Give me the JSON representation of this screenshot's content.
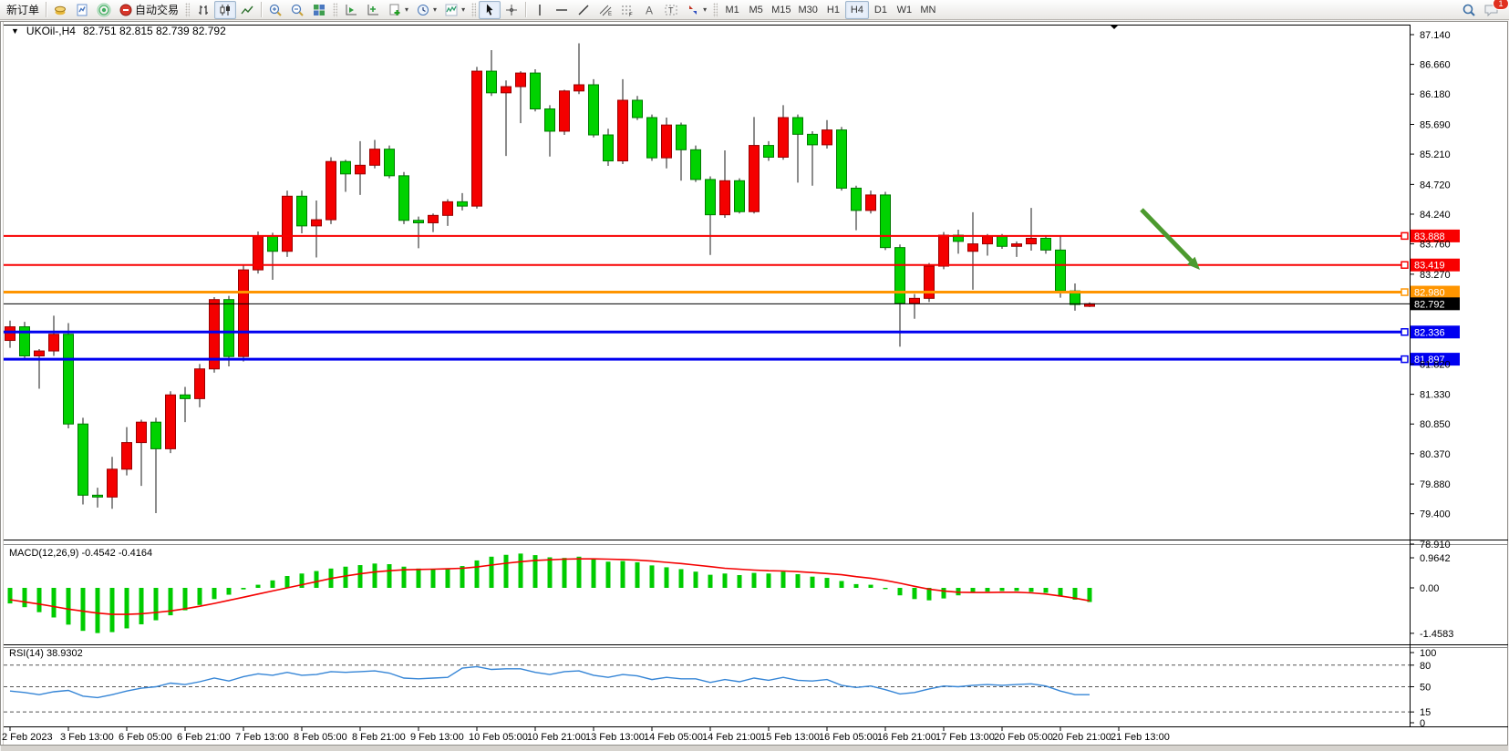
{
  "toolbar": {
    "new_order_label": "新订单",
    "autotrade_label": "自动交易",
    "timeframes": [
      "M1",
      "M5",
      "M15",
      "M30",
      "H1",
      "H4",
      "D1",
      "W1",
      "MN"
    ],
    "active_timeframe": "H4",
    "notification_count": "1"
  },
  "chart": {
    "symbol_period": "UKOil-,H4",
    "ohlc": "82.751 82.815 82.739 82.792"
  },
  "price_axis": {
    "ticks": [
      "87.140",
      "86.660",
      "86.180",
      "85.690",
      "85.210",
      "84.720",
      "84.240",
      "83.760",
      "83.270",
      "81.820",
      "81.330",
      "80.850",
      "80.370",
      "79.880",
      "79.400",
      "78.910"
    ]
  },
  "time_axis": {
    "labels": [
      "2 Feb 2023",
      "3 Feb 13:00",
      "6 Feb 05:00",
      "6 Feb 21:00",
      "7 Feb 13:00",
      "8 Feb 05:00",
      "8 Feb 21:00",
      "9 Feb 13:00",
      "10 Feb 05:00",
      "10 Feb 21:00",
      "13 Feb 13:00",
      "14 Feb 05:00",
      "14 Feb 21:00",
      "15 Feb 13:00",
      "16 Feb 05:00",
      "16 Feb 21:00",
      "17 Feb 13:00",
      "20 Feb 05:00",
      "20 Feb 21:00",
      "21 Feb 13:00"
    ]
  },
  "hlines": [
    {
      "price": 83.888,
      "label": "83.888",
      "color": "#f80000",
      "width": 2
    },
    {
      "price": 83.419,
      "label": "83.419",
      "color": "#f80000",
      "width": 2
    },
    {
      "price": 82.98,
      "label": "82.980",
      "color": "#ff9500",
      "width": 3
    },
    {
      "price": 82.336,
      "label": "82.336",
      "color": "#0000f0",
      "width": 3
    },
    {
      "price": 81.897,
      "label": "81.897",
      "color": "#0000f0",
      "width": 3
    }
  ],
  "current_price": {
    "price": 82.792,
    "label": "82.792",
    "color": "#000000"
  },
  "annotation_arrow": {
    "from": [
      1252,
      230
    ],
    "to": [
      1316,
      296
    ],
    "color": "#4c9a2e",
    "width": 5
  },
  "indicators": {
    "macd": {
      "label": "MACD(12,26,9) -0.4542 -0.4164",
      "axis": [
        "0.9642",
        "0.00",
        "-1.4583"
      ],
      "hist_color": "#00cc00",
      "signal_color": "#f40000"
    },
    "rsi": {
      "label": "RSI(14) 38.9302",
      "axis": [
        "100",
        "80",
        "50",
        "15",
        "0"
      ],
      "levels": [
        80,
        50,
        15
      ],
      "line_color": "#3585d6"
    }
  },
  "chart_data": {
    "type": "candlestick",
    "title": "UKOil-,H4",
    "up_color": "#f40000",
    "down_color": "#00d200",
    "ylim": [
      78.91,
      87.14
    ],
    "candles": [
      [
        82.2,
        82.52,
        82.08,
        82.42
      ],
      [
        82.42,
        82.5,
        81.88,
        81.95
      ],
      [
        81.95,
        82.06,
        81.42,
        82.03
      ],
      [
        82.03,
        82.6,
        81.95,
        82.3
      ],
      [
        82.3,
        82.48,
        80.78,
        80.85
      ],
      [
        80.85,
        80.95,
        79.55,
        79.7
      ],
      [
        79.7,
        79.82,
        79.5,
        79.67
      ],
      [
        79.67,
        80.32,
        79.48,
        80.12
      ],
      [
        80.12,
        80.8,
        80.02,
        80.55
      ],
      [
        80.55,
        80.92,
        79.85,
        80.88
      ],
      [
        80.88,
        80.95,
        79.41,
        80.45
      ],
      [
        80.45,
        81.38,
        80.38,
        81.32
      ],
      [
        81.32,
        81.45,
        80.88,
        81.26
      ],
      [
        81.26,
        81.82,
        81.12,
        81.74
      ],
      [
        81.74,
        82.9,
        81.68,
        82.86
      ],
      [
        82.86,
        82.92,
        81.78,
        81.94
      ],
      [
        81.94,
        83.42,
        81.86,
        83.34
      ],
      [
        83.34,
        83.96,
        83.28,
        83.89
      ],
      [
        83.89,
        83.94,
        83.18,
        83.64
      ],
      [
        83.64,
        84.62,
        83.55,
        84.53
      ],
      [
        84.53,
        84.62,
        83.93,
        84.05
      ],
      [
        84.05,
        84.46,
        83.54,
        84.15
      ],
      [
        84.15,
        85.16,
        84.08,
        85.09
      ],
      [
        85.09,
        85.12,
        84.6,
        84.89
      ],
      [
        84.89,
        85.42,
        84.55,
        85.03
      ],
      [
        85.03,
        85.44,
        84.98,
        85.29
      ],
      [
        85.29,
        85.35,
        84.82,
        84.86
      ],
      [
        84.86,
        84.92,
        84.08,
        84.14
      ],
      [
        84.14,
        84.2,
        83.69,
        84.1
      ],
      [
        84.1,
        84.25,
        83.95,
        84.22
      ],
      [
        84.22,
        84.48,
        84.05,
        84.44
      ],
      [
        84.44,
        84.58,
        84.3,
        84.37
      ],
      [
        84.37,
        86.62,
        84.33,
        86.55
      ],
      [
        86.55,
        86.89,
        86.15,
        86.2
      ],
      [
        86.2,
        86.4,
        85.18,
        86.3
      ],
      [
        86.3,
        86.55,
        85.71,
        86.52
      ],
      [
        86.52,
        86.58,
        85.9,
        85.94
      ],
      [
        85.94,
        86.0,
        85.17,
        85.58
      ],
      [
        85.58,
        86.25,
        85.52,
        86.23
      ],
      [
        86.23,
        87.0,
        86.18,
        86.33
      ],
      [
        86.33,
        86.42,
        85.48,
        85.52
      ],
      [
        85.52,
        85.62,
        85.02,
        85.1
      ],
      [
        85.1,
        86.42,
        85.05,
        86.08
      ],
      [
        86.08,
        86.15,
        85.76,
        85.8
      ],
      [
        85.8,
        85.85,
        85.1,
        85.15
      ],
      [
        85.15,
        85.8,
        84.98,
        85.68
      ],
      [
        85.68,
        85.72,
        84.78,
        85.28
      ],
      [
        85.28,
        85.35,
        84.76,
        84.8
      ],
      [
        84.8,
        84.85,
        83.58,
        84.23
      ],
      [
        84.23,
        85.27,
        84.18,
        84.78
      ],
      [
        84.78,
        84.82,
        84.25,
        84.28
      ],
      [
        84.28,
        85.81,
        84.25,
        85.35
      ],
      [
        85.35,
        85.42,
        85.1,
        85.16
      ],
      [
        85.16,
        86.0,
        85.12,
        85.8
      ],
      [
        85.8,
        85.85,
        84.75,
        85.53
      ],
      [
        85.53,
        85.58,
        84.7,
        85.36
      ],
      [
        85.36,
        85.76,
        85.3,
        85.6
      ],
      [
        85.6,
        85.65,
        84.62,
        84.66
      ],
      [
        84.66,
        84.7,
        83.98,
        84.3
      ],
      [
        84.3,
        84.62,
        84.25,
        84.55
      ],
      [
        84.55,
        84.6,
        83.66,
        83.7
      ],
      [
        83.7,
        83.75,
        82.1,
        82.8
      ],
      [
        82.8,
        82.95,
        82.55,
        82.88
      ],
      [
        82.88,
        83.45,
        82.82,
        83.4
      ],
      [
        83.4,
        83.95,
        83.35,
        83.9
      ],
      [
        83.9,
        83.99,
        83.6,
        83.8
      ],
      [
        83.64,
        84.27,
        83.02,
        83.76
      ],
      [
        83.76,
        83.92,
        83.57,
        83.88
      ],
      [
        83.88,
        83.92,
        83.68,
        83.72
      ],
      [
        83.72,
        83.8,
        83.55,
        83.76
      ],
      [
        83.76,
        84.34,
        83.65,
        83.85
      ],
      [
        83.85,
        83.9,
        83.6,
        83.66
      ],
      [
        83.66,
        83.88,
        82.89,
        83.0
      ],
      [
        83.0,
        83.12,
        82.68,
        82.78
      ],
      [
        82.751,
        82.815,
        82.739,
        82.792
      ]
    ],
    "macd_hist": [
      -0.5,
      -0.62,
      -0.78,
      -0.95,
      -1.18,
      -1.38,
      -1.45,
      -1.42,
      -1.3,
      -1.17,
      -1.04,
      -0.88,
      -0.72,
      -0.55,
      -0.36,
      -0.22,
      -0.05,
      0.1,
      0.24,
      0.38,
      0.46,
      0.54,
      0.62,
      0.68,
      0.73,
      0.78,
      0.76,
      0.68,
      0.62,
      0.6,
      0.63,
      0.7,
      0.88,
      1.0,
      1.06,
      1.1,
      1.05,
      0.98,
      0.96,
      1.0,
      0.93,
      0.84,
      0.86,
      0.82,
      0.72,
      0.66,
      0.6,
      0.52,
      0.42,
      0.46,
      0.41,
      0.48,
      0.46,
      0.52,
      0.44,
      0.36,
      0.32,
      0.22,
      0.12,
      0.1,
      -0.04,
      -0.24,
      -0.36,
      -0.4,
      -0.34,
      -0.24,
      -0.16,
      -0.12,
      -0.1,
      -0.1,
      -0.13,
      -0.16,
      -0.28,
      -0.38,
      -0.4542
    ],
    "macd_signal": [
      -0.38,
      -0.45,
      -0.52,
      -0.6,
      -0.68,
      -0.75,
      -0.81,
      -0.85,
      -0.85,
      -0.83,
      -0.79,
      -0.74,
      -0.67,
      -0.59,
      -0.5,
      -0.4,
      -0.3,
      -0.2,
      -0.1,
      0.0,
      0.1,
      0.2,
      0.3,
      0.38,
      0.45,
      0.51,
      0.55,
      0.58,
      0.59,
      0.6,
      0.61,
      0.63,
      0.67,
      0.73,
      0.79,
      0.84,
      0.88,
      0.9,
      0.92,
      0.93,
      0.93,
      0.92,
      0.91,
      0.89,
      0.86,
      0.82,
      0.78,
      0.73,
      0.68,
      0.63,
      0.6,
      0.57,
      0.55,
      0.54,
      0.52,
      0.49,
      0.46,
      0.42,
      0.36,
      0.31,
      0.24,
      0.15,
      0.05,
      -0.04,
      -0.1,
      -0.14,
      -0.15,
      -0.15,
      -0.14,
      -0.14,
      -0.16,
      -0.2,
      -0.26,
      -0.33,
      -0.4164
    ],
    "rsi_values": [
      44,
      42,
      39,
      43,
      45,
      37,
      35,
      39,
      44,
      48,
      50,
      55,
      53,
      57,
      62,
      58,
      64,
      68,
      66,
      70,
      66,
      67,
      71,
      70,
      71,
      72,
      69,
      62,
      61,
      62,
      63,
      76,
      78,
      74,
      75,
      75,
      70,
      67,
      71,
      72,
      66,
      63,
      67,
      65,
      60,
      63,
      61,
      61,
      56,
      60,
      57,
      62,
      59,
      63,
      59,
      58,
      60,
      52,
      49,
      51,
      46,
      40,
      42,
      47,
      51,
      50,
      52,
      53,
      52,
      53,
      54,
      51,
      44,
      39,
      38.93
    ]
  }
}
